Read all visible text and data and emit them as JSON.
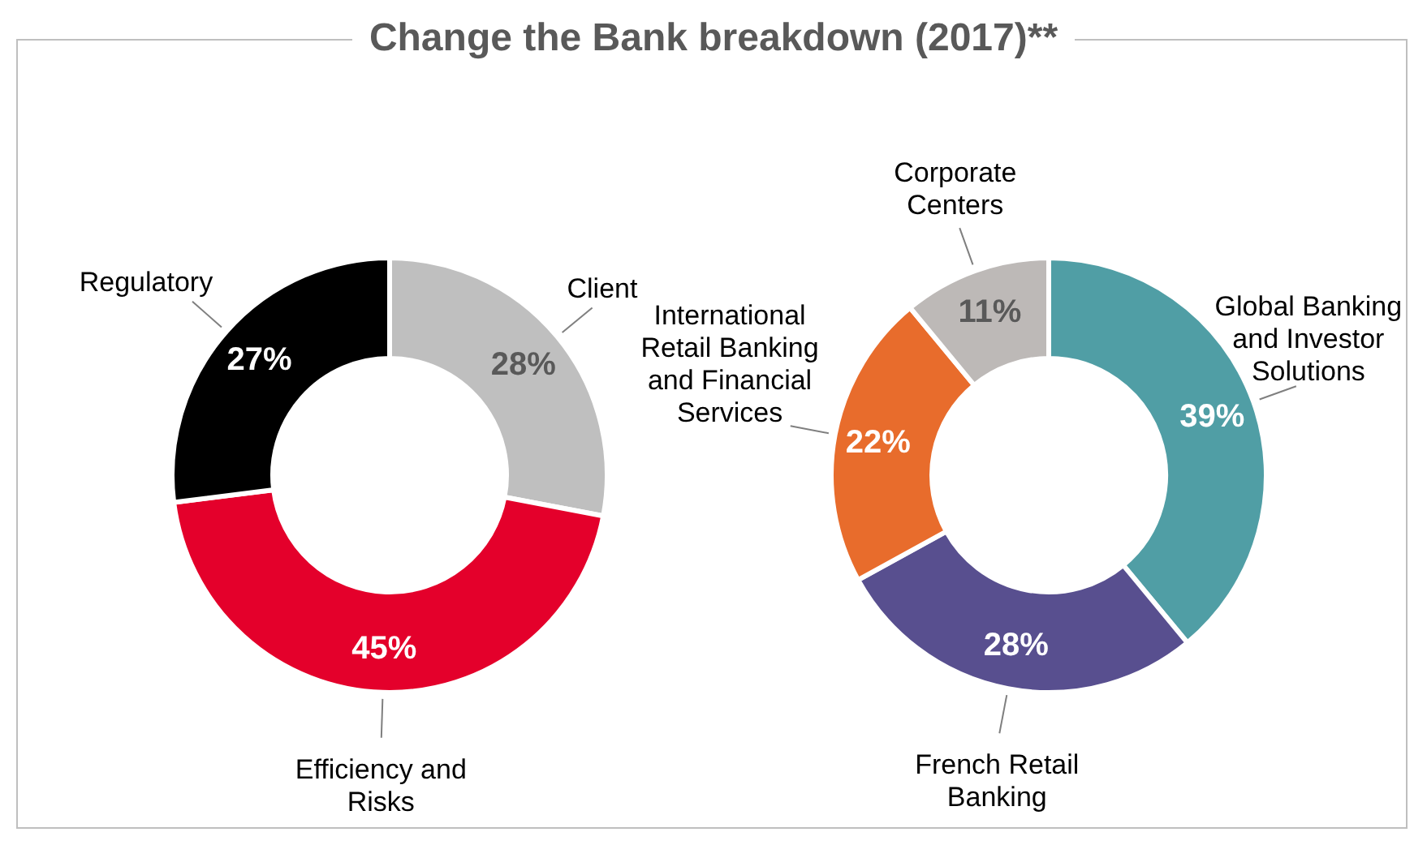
{
  "chart_data": [
    {
      "type": "donut",
      "title": "Change the Bank breakdown (2017)**",
      "categories": [
        "Client",
        "Efficiency and Risks",
        "Regulatory"
      ],
      "values": [
        28,
        45,
        27
      ],
      "value_labels": [
        "28%",
        "45%",
        "27%"
      ],
      "colors": [
        "#bfbfbf",
        "#e4002b",
        "#000000"
      ]
    },
    {
      "type": "donut",
      "categories": [
        "Global Banking and Investor Solutions",
        "French Retail Banking",
        "International Retail Banking and Financial Services",
        "Corporate Centers"
      ],
      "values": [
        39,
        28,
        22,
        11
      ],
      "value_labels": [
        "39%",
        "28%",
        "22%",
        "11%"
      ],
      "colors": [
        "#509ea5",
        "#584f8f",
        "#e86c2c",
        "#bdb9b7"
      ]
    }
  ]
}
